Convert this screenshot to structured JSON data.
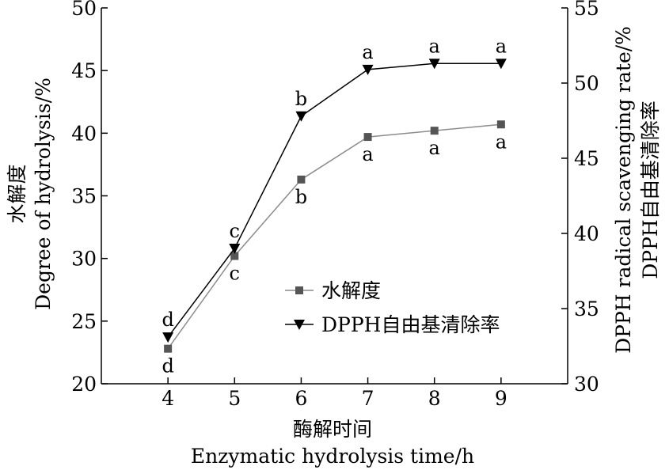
{
  "chart_data": {
    "type": "line",
    "x": [
      4,
      5,
      6,
      7,
      8,
      9
    ],
    "x_tick_labels": [
      "4",
      "5",
      "6",
      "7",
      "8",
      "9"
    ],
    "xlim": [
      3,
      10
    ],
    "xlabel_cn": "酶解时间",
    "xlabel_en": "Enzymatic hydrolysis time/h",
    "left_axis": {
      "label_cn": "水解度",
      "label_en": "Degree of hydrolysis/%",
      "ylim": [
        20,
        50
      ],
      "ticks": [
        20,
        25,
        30,
        35,
        40,
        45,
        50
      ],
      "tick_labels": [
        "20",
        "25",
        "30",
        "35",
        "40",
        "45",
        "50"
      ]
    },
    "right_axis": {
      "label_cn": "DPPH自由基清除率",
      "label_en": "DPPH radical scavenging rate/%",
      "ylim": [
        30,
        55
      ],
      "ticks": [
        30,
        35,
        40,
        45,
        50,
        55
      ],
      "tick_labels": [
        "30",
        "35",
        "40",
        "45",
        "50",
        "55"
      ]
    },
    "series": [
      {
        "name": "水解度",
        "axis": "left",
        "marker": "square",
        "color": "#8c8c8c",
        "marker_color": "#555555",
        "values": [
          22.8,
          30.2,
          36.3,
          39.7,
          40.2,
          40.7
        ],
        "labels": [
          "d",
          "c",
          "b",
          "a",
          "a",
          "a"
        ],
        "label_position": "below"
      },
      {
        "name": "DPPH自由基清除率",
        "axis": "right",
        "marker": "triangle-down",
        "color": "#000000",
        "marker_color": "#000000",
        "values": [
          33.1,
          39.0,
          47.8,
          50.9,
          51.3,
          51.3
        ],
        "labels": [
          "d",
          "c",
          "b",
          "a",
          "a",
          "a"
        ],
        "label_position": "above"
      }
    ],
    "legend": "center-right",
    "grid": false
  }
}
